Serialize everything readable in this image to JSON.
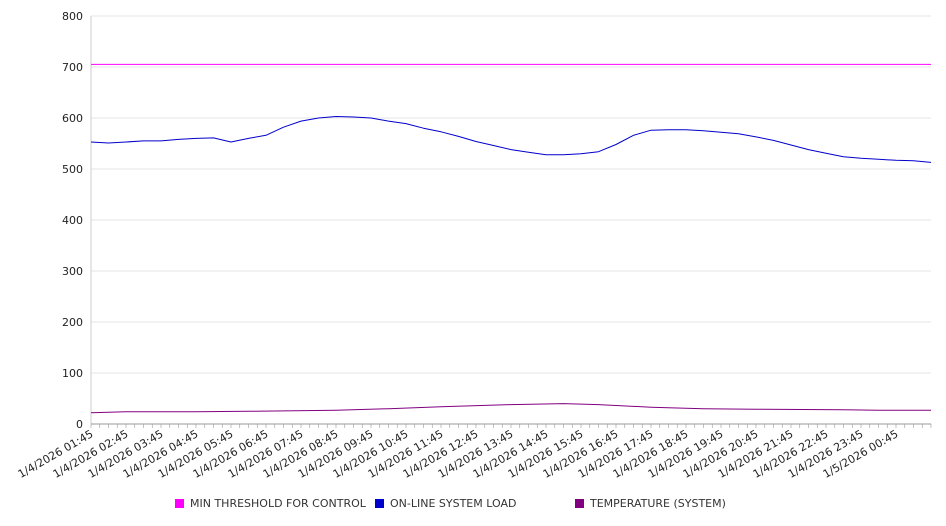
{
  "chart_data": {
    "type": "line",
    "title": "",
    "xlabel": "",
    "ylabel": "",
    "ylim": [
      0,
      800
    ],
    "yticks": [
      "0",
      "100",
      "200",
      "300",
      "400",
      "500",
      "600",
      "700",
      "800"
    ],
    "grid": "horizontal",
    "legend_position": "bottom",
    "x_tick_labels": [
      "1/4/2026 01:45",
      "1/4/2026 02:45",
      "1/4/2026 03:45",
      "1/4/2026 04:45",
      "1/4/2026 05:45",
      "1/4/2026 06:45",
      "1/4/2026 07:45",
      "1/4/2026 08:45",
      "1/4/2026 09:45",
      "1/4/2026 10:45",
      "1/4/2026 11:45",
      "1/4/2026 12:45",
      "1/4/2026 13:45",
      "1/4/2026 14:45",
      "1/4/2026 15:45",
      "1/4/2026 16:45",
      "1/4/2026 17:45",
      "1/4/2026 18:45",
      "1/4/2026 19:45",
      "1/4/2026 20:45",
      "1/4/2026 21:45",
      "1/4/2026 22:45",
      "1/4/2026 23:45",
      "1/5/2026 00:45"
    ],
    "x_range": [
      "1/4/2026 01:45",
      "1/5/2026 01:45"
    ],
    "series": [
      {
        "name": "MIN THRESHOLD FOR CONTROL",
        "color": "#ff00ff",
        "points": [
          [
            "1/4/2026 01:45",
            705
          ],
          [
            "1/5/2026 01:45",
            705
          ]
        ]
      },
      {
        "name": "ON-LINE SYSTEM LOAD",
        "color": "#0000cc",
        "points": [
          [
            "1/4/2026 01:45",
            553
          ],
          [
            "1/4/2026 02:15",
            551
          ],
          [
            "1/4/2026 02:45",
            553
          ],
          [
            "1/4/2026 03:15",
            555
          ],
          [
            "1/4/2026 03:45",
            555
          ],
          [
            "1/4/2026 04:15",
            558
          ],
          [
            "1/4/2026 04:45",
            560
          ],
          [
            "1/4/2026 05:15",
            561
          ],
          [
            "1/4/2026 05:45",
            553
          ],
          [
            "1/4/2026 06:15",
            560
          ],
          [
            "1/4/2026 06:45",
            566
          ],
          [
            "1/4/2026 07:15",
            582
          ],
          [
            "1/4/2026 07:45",
            594
          ],
          [
            "1/4/2026 08:15",
            600
          ],
          [
            "1/4/2026 08:45",
            603
          ],
          [
            "1/4/2026 09:15",
            602
          ],
          [
            "1/4/2026 09:45",
            600
          ],
          [
            "1/4/2026 10:15",
            594
          ],
          [
            "1/4/2026 10:45",
            589
          ],
          [
            "1/4/2026 11:15",
            580
          ],
          [
            "1/4/2026 11:45",
            573
          ],
          [
            "1/4/2026 12:15",
            564
          ],
          [
            "1/4/2026 12:45",
            554
          ],
          [
            "1/4/2026 13:15",
            546
          ],
          [
            "1/4/2026 13:45",
            538
          ],
          [
            "1/4/2026 14:15",
            533
          ],
          [
            "1/4/2026 14:45",
            528
          ],
          [
            "1/4/2026 15:15",
            528
          ],
          [
            "1/4/2026 15:45",
            530
          ],
          [
            "1/4/2026 16:15",
            534
          ],
          [
            "1/4/2026 16:45",
            548
          ],
          [
            "1/4/2026 17:15",
            566
          ],
          [
            "1/4/2026 17:45",
            576
          ],
          [
            "1/4/2026 18:15",
            577
          ],
          [
            "1/4/2026 18:45",
            577
          ],
          [
            "1/4/2026 19:15",
            575
          ],
          [
            "1/4/2026 19:45",
            572
          ],
          [
            "1/4/2026 20:15",
            569
          ],
          [
            "1/4/2026 20:45",
            563
          ],
          [
            "1/4/2026 21:15",
            556
          ],
          [
            "1/4/2026 21:45",
            547
          ],
          [
            "1/4/2026 22:15",
            538
          ],
          [
            "1/4/2026 22:45",
            531
          ],
          [
            "1/4/2026 23:15",
            524
          ],
          [
            "1/4/2026 23:45",
            521
          ],
          [
            "1/5/2026 00:15",
            519
          ],
          [
            "1/5/2026 00:45",
            517
          ],
          [
            "1/5/2026 01:15",
            516
          ],
          [
            "1/5/2026 01:45",
            513
          ]
        ]
      },
      {
        "name": "TEMPERATURE (SYSTEM)",
        "color": "#800080",
        "points": [
          [
            "1/4/2026 01:45",
            22
          ],
          [
            "1/4/2026 02:45",
            24
          ],
          [
            "1/4/2026 04:45",
            24
          ],
          [
            "1/4/2026 06:15",
            25
          ],
          [
            "1/4/2026 08:45",
            27
          ],
          [
            "1/4/2026 10:15",
            30
          ],
          [
            "1/4/2026 11:45",
            34
          ],
          [
            "1/4/2026 13:45",
            38
          ],
          [
            "1/4/2026 15:15",
            40
          ],
          [
            "1/4/2026 16:15",
            38
          ],
          [
            "1/4/2026 17:45",
            33
          ],
          [
            "1/4/2026 19:15",
            30
          ],
          [
            "1/4/2026 20:45",
            29
          ],
          [
            "1/4/2026 23:15",
            28
          ],
          [
            "1/5/2026 00:15",
            27
          ],
          [
            "1/5/2026 01:45",
            27
          ]
        ]
      }
    ]
  }
}
